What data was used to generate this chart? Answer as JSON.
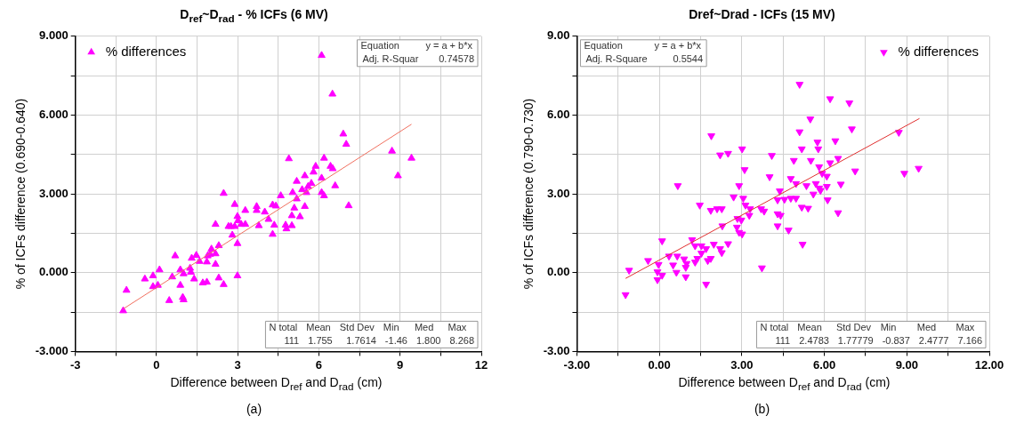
{
  "chart_data": [
    {
      "type": "scatter",
      "title": "D$_{ref}$~D$_{rad}$ - % ICFs (6 MV)",
      "xlabel": "Difference between D$_{ref}$ and D$_{rad}$  (cm)",
      "ylabel": "% of ICFs difference (0.690-0.640)",
      "xlim": [
        -3,
        12
      ],
      "xticks": [
        -3,
        {
          "value": -1.5,
          "label": null
        },
        0,
        {
          "value": 1.5,
          "label": null
        },
        3,
        {
          "value": 4.5,
          "label": null
        },
        6,
        {
          "value": 7.5,
          "label": null
        },
        9,
        {
          "value": 10.5,
          "label": null
        },
        12
      ],
      "ylim": [
        -3,
        9
      ],
      "yticks": [
        {
          "value": -3,
          "label": "-3.000"
        },
        {
          "value": -1.5,
          "label": null
        },
        {
          "value": 0,
          "label": "0.000"
        },
        {
          "value": 1.5,
          "label": null
        },
        {
          "value": 3,
          "label": "3.000"
        },
        {
          "value": 4.5,
          "label": null
        },
        {
          "value": 6,
          "label": "6.000"
        },
        {
          "value": 7.5,
          "label": null
        },
        {
          "value": 9,
          "label": "9.000"
        }
      ],
      "grid": true,
      "legend": "top left",
      "marker": "triangle",
      "annotations": [
        "Equation",
        "y = a + b*x",
        "Adj. R-Squar",
        "0.74578",
        "N total",
        "Mean",
        "Std Dev",
        "Min",
        "Med",
        "Max",
        "111",
        "1.755",
        "1.7614",
        "-1.46",
        "1.800",
        "8.268",
        "(a)"
      ],
      "series": [
        {
          "name": "% differences",
          "type": "scatter",
          "color": "#ff00ff",
          "x": [
            6.1,
            6.5,
            6.9,
            7.01,
            8.7,
            9.42,
            8.92,
            7.1,
            4.89,
            6.19,
            5.88,
            5.8,
            5.48,
            5.18,
            5.72,
            5.6,
            5.38,
            5.54,
            6.1,
            6.43,
            6.51,
            6.6,
            6.1,
            6.19,
            5.03,
            5.18,
            5.09,
            5.48,
            5.3,
            5.0,
            4.59,
            4.29,
            4.41,
            4.0,
            4.14,
            4.35,
            4.77,
            4.8,
            5.0,
            4.29,
            3.78,
            3.7,
            3.7,
            3.28,
            2.89,
            2.99,
            3.01,
            3.13,
            3.28,
            2.75,
            2.89,
            2.66,
            2.8,
            2.48,
            2.18,
            2.99,
            2.99,
            2.3,
            2.03,
            2.18,
            1.98,
            1.89,
            1.47,
            1.3,
            1.59,
            1.86,
            2.18,
            0.69,
            1.24,
            1.27,
            0.88,
            1.0,
            0.58,
            0.11,
            -0.13,
            -0.43,
            0.05,
            -0.13,
            0.88,
            1.39,
            1.71,
            1.86,
            2.3,
            2.48,
            -1.11,
            -1.23,
            0.47,
            0.97,
            1.0
          ],
          "values": [
            8.27,
            6.8,
            5.28,
            4.89,
            4.63,
            4.36,
            3.69,
            2.55,
            4.34,
            4.36,
            4.05,
            3.83,
            3.69,
            3.48,
            3.4,
            3.28,
            3.16,
            3.05,
            3.6,
            4.05,
            3.96,
            3.31,
            3.05,
            2.93,
            3.05,
            2.81,
            2.46,
            2.52,
            2.13,
            2.17,
            2.93,
            2.58,
            2.54,
            2.31,
            2.03,
            1.81,
            1.81,
            1.67,
            1.79,
            1.46,
            1.79,
            2.52,
            2.37,
            2.37,
            2.6,
            2.14,
            1.98,
            1.84,
            1.84,
            1.76,
            1.76,
            1.76,
            1.43,
            3.02,
            1.84,
            1.11,
            -0.12,
            1.03,
            0.9,
            0.72,
            0.7,
            0.64,
            0.66,
            0.55,
            0.43,
            0.41,
            0.32,
            0.64,
            0.17,
            0.02,
            0.11,
            -0.04,
            -0.16,
            0.11,
            -0.12,
            -0.24,
            -0.48,
            -0.53,
            -0.48,
            -0.24,
            -0.39,
            -0.36,
            -0.2,
            -0.45,
            -0.67,
            -1.45,
            -1.06,
            -0.94,
            -1.03
          ]
        },
        {
          "type": "line",
          "color": "#f07060",
          "marker": "none",
          "x": [
            -1.23,
            9.42
          ],
          "values": [
            -1.38,
            5.65
          ]
        }
      ]
    },
    {
      "type": "scatter",
      "title": "Dref~Drad - ICFs (15 MV)",
      "xlabel": "Difference between D$_{ref}$ and D$_{rad}$  (cm)",
      "ylabel": "% of ICFs difference (0.790-0.730)",
      "xlim": [
        -3,
        12
      ],
      "xticks": [
        {
          "value": -3,
          "label": "-3.00"
        },
        {
          "value": -1.5,
          "label": null
        },
        {
          "value": 0,
          "label": "0.00"
        },
        {
          "value": 1.5,
          "label": null
        },
        {
          "value": 3,
          "label": "3.00"
        },
        {
          "value": 4.5,
          "label": null
        },
        {
          "value": 6,
          "label": "6.00"
        },
        {
          "value": 7.5,
          "label": null
        },
        {
          "value": 9,
          "label": "9.00"
        },
        {
          "value": 10.5,
          "label": null
        },
        {
          "value": 12,
          "label": "12.00"
        }
      ],
      "ylim": [
        -3,
        9
      ],
      "yticks": [
        {
          "value": -3,
          "label": "-3.00"
        },
        {
          "value": -1.5,
          "label": null
        },
        {
          "value": 0,
          "label": "0.00"
        },
        {
          "value": 1.5,
          "label": null
        },
        {
          "value": 3,
          "label": "3.00"
        },
        {
          "value": 4.5,
          "label": null
        },
        {
          "value": 6,
          "label": "6.00"
        },
        {
          "value": 7.5,
          "label": null
        },
        {
          "value": 9,
          "label": "9.00"
        }
      ],
      "grid": true,
      "legend": "top right",
      "marker": "triangle-down",
      "annotations": [
        "Equation",
        "y = a + b*x",
        "Adj. R-Square",
        "0.5544",
        "N total",
        "Mean",
        "Std Dev",
        "Min",
        "Med",
        "Max",
        "111",
        "2.4783",
        "1.77779",
        "-0.837",
        "2.4777",
        "7.166",
        "(b)"
      ],
      "series": [
        {
          "name": "% differences",
          "type": "scatter",
          "color": "#ff00ff",
          "x": [
            5.1,
            6.21,
            6.91,
            5.49,
            7.0,
            5.1,
            8.71,
            1.89,
            5.75,
            6.4,
            2.21,
            2.5,
            3.01,
            4.09,
            5.18,
            5.78,
            4.89,
            5.51,
            6.5,
            6.21,
            5.81,
            3.1,
            7.12,
            8.91,
            9.43,
            4.01,
            4.78,
            5.92,
            6.09,
            0.67,
            2.9,
            4.97,
            5.35,
            5.69,
            5.81,
            6.09,
            6.6,
            5.6,
            5.86,
            4.38,
            1.47,
            1.87,
            2.1,
            2.27,
            2.7,
            3.05,
            3.13,
            3.3,
            3.7,
            3.81,
            4.3,
            4.55,
            4.78,
            4.97,
            5.18,
            5.41,
            6.12,
            6.5,
            3.27,
            4.3,
            4.41,
            2.29,
            2.84,
            2.98,
            2.82,
            2.9,
            3.01,
            4.3,
            4.7,
            5.21,
            3.73,
            0.1,
            1.19,
            1.3,
            1.53,
            1.7,
            1.98,
            2.5,
            2.21,
            2.27,
            1.53,
            1.87,
            1.76,
            0.35,
            0.65,
            0.9,
            0.99,
            1.3,
            1.38,
            -0.41,
            -0.03,
            0.5,
            0.96,
            -0.07,
            0.1,
            0.62,
            -0.07,
            0.96,
            1.7,
            -1.1,
            -1.23
          ],
          "values": [
            7.17,
            6.62,
            6.46,
            5.85,
            5.47,
            5.36,
            5.34,
            5.21,
            4.97,
            5.02,
            4.48,
            4.54,
            4.71,
            4.46,
            4.71,
            4.71,
            4.27,
            4.27,
            4.35,
            4.18,
            4.03,
            3.92,
            3.87,
            3.78,
            3.97,
            3.65,
            3.58,
            3.78,
            3.67,
            3.31,
            3.31,
            3.39,
            3.31,
            3.39,
            3.22,
            3.28,
            3.37,
            2.99,
            3.13,
            3.11,
            2.57,
            2.37,
            2.43,
            2.43,
            2.88,
            2.83,
            2.57,
            2.43,
            2.43,
            2.34,
            2.77,
            2.79,
            2.83,
            2.83,
            2.49,
            2.45,
            2.77,
            2.28,
            2.18,
            2.24,
            2.18,
            1.78,
            2.06,
            2.0,
            1.73,
            1.53,
            1.47,
            1.78,
            1.62,
            1.08,
            0.18,
            1.21,
            1.25,
            1.02,
            1.02,
            0.91,
            1.08,
            1.1,
            0.91,
            0.76,
            0.74,
            0.54,
            0.46,
            0.63,
            0.63,
            0.52,
            0.35,
            0.4,
            0.54,
            0.46,
            0.31,
            0.29,
            0.2,
            0.03,
            -0.1,
            0.01,
            -0.27,
            -0.16,
            -0.44,
            0.09,
            -0.84
          ]
        },
        {
          "type": "line",
          "color": "#e03030",
          "marker": "none",
          "x": [
            -1.23,
            9.46
          ],
          "values": [
            -0.22,
            5.87
          ]
        }
      ]
    }
  ]
}
